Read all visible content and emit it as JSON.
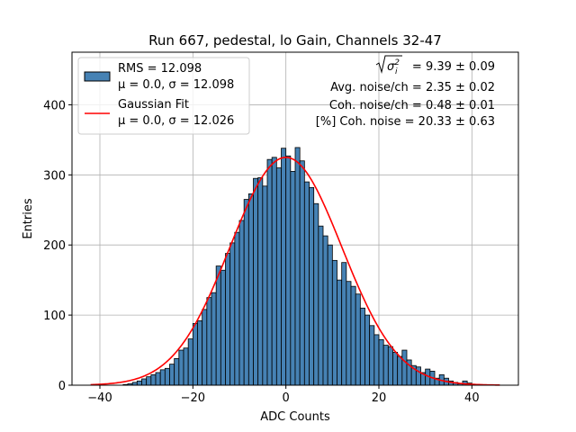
{
  "chart_data": {
    "type": "bar",
    "title": "Run 667, pedestal, lo Gain, Channels 32-47",
    "xlabel": "ADC Counts",
    "ylabel": "Entries",
    "xlim": [
      -46,
      50
    ],
    "ylim": [
      0,
      475
    ],
    "xticks": [
      -40,
      -20,
      0,
      20,
      40
    ],
    "yticks": [
      0,
      100,
      200,
      300,
      400
    ],
    "xtick_labels": [
      "−40",
      "−20",
      "0",
      "20",
      "40"
    ],
    "ytick_labels": [
      "0",
      "100",
      "200",
      "300",
      "400"
    ],
    "grid": true,
    "legend_position": "top-left",
    "histogram": {
      "name": "RMS = 12.098",
      "name_line2": "μ = 0.0, σ = 12.098",
      "color": "#4682b4",
      "edge_color": "#000000",
      "bin_width": 1,
      "bin_starts": [
        -35,
        -34,
        -33,
        -32,
        -31,
        -30,
        -29,
        -28,
        -27,
        -26,
        -25,
        -24,
        -23,
        -22,
        -21,
        -20,
        -19,
        -18,
        -17,
        -16,
        -15,
        -14,
        -13,
        -12,
        -11,
        -10,
        -9,
        -8,
        -7,
        -6,
        -5,
        -4,
        -3,
        -2,
        -1,
        0,
        1,
        2,
        3,
        4,
        5,
        6,
        7,
        8,
        9,
        10,
        11,
        12,
        13,
        14,
        15,
        16,
        17,
        18,
        19,
        20,
        21,
        22,
        23,
        24,
        25,
        26,
        27,
        28,
        29,
        30,
        31,
        32,
        33,
        34,
        35,
        36,
        37,
        38,
        39,
        40
      ],
      "counts": [
        1,
        2,
        4,
        6,
        9,
        12,
        15,
        18,
        22,
        24,
        30,
        38,
        50,
        53,
        66,
        88,
        92,
        108,
        125,
        132,
        170,
        164,
        188,
        203,
        218,
        235,
        265,
        273,
        295,
        296,
        284,
        322,
        325,
        310,
        338,
        327,
        305,
        339,
        320,
        290,
        282,
        259,
        227,
        213,
        200,
        178,
        150,
        175,
        148,
        141,
        130,
        110,
        100,
        85,
        72,
        65,
        57,
        55,
        47,
        41,
        50,
        36,
        28,
        26,
        18,
        23,
        20,
        10,
        15,
        10,
        6,
        4,
        2,
        6,
        3,
        1
      ]
    },
    "fit": {
      "name": "Gaussian Fit",
      "name_line2": "μ = 0.0, σ = 12.026",
      "color": "#ff0000",
      "mu": 0.0,
      "sigma": 12.026,
      "amplitude": 325,
      "x_range": [
        -42,
        46
      ]
    },
    "stats": [
      {
        "label_prefix": "",
        "value": " = 9.39 ± 0.09",
        "has_sqrt": true
      },
      {
        "label_prefix": "Avg. noise/ch = 2.35 ± 0.02",
        "value": "",
        "has_sqrt": false
      },
      {
        "label_prefix": "Coh. noise/ch = 0.48 ± 0.01",
        "value": "",
        "has_sqrt": false
      },
      {
        "label_prefix": "[%] Coh. noise = 20.33 ± 0.63",
        "value": "",
        "has_sqrt": false
      }
    ]
  }
}
